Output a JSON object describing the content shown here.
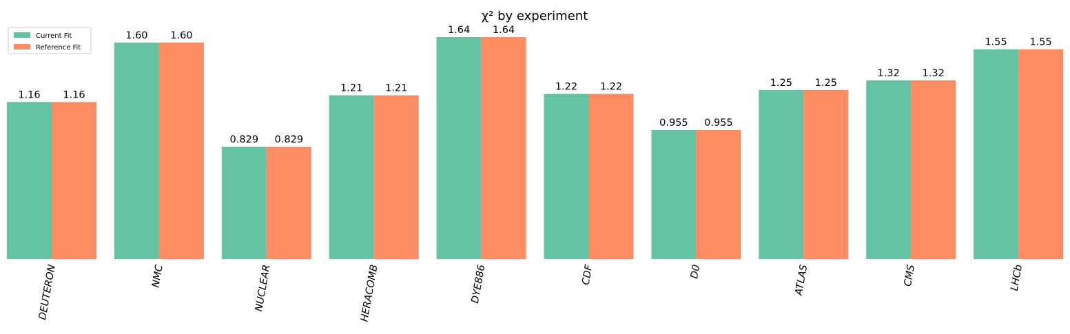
{
  "chart_data": {
    "type": "bar",
    "title": "χ² by experiment",
    "xlabel": "",
    "ylabel": "",
    "categories": [
      "DEUTERON",
      "NMC",
      "NUCLEAR",
      "HERACOMB",
      "DYE886",
      "CDF",
      "D0",
      "ATLAS",
      "CMS",
      "LHCb"
    ],
    "series": [
      {
        "name": "Current Fit",
        "color": "#66c2a5",
        "values": [
          1.16,
          1.6,
          0.829,
          1.21,
          1.64,
          1.22,
          0.955,
          1.25,
          1.32,
          1.55
        ],
        "labels": [
          "1.16",
          "1.60",
          "0.829",
          "1.21",
          "1.64",
          "1.22",
          "0.955",
          "1.25",
          "1.32",
          "1.55"
        ]
      },
      {
        "name": "Reference Fit",
        "color": "#fc8d62",
        "values": [
          1.16,
          1.6,
          0.829,
          1.21,
          1.64,
          1.22,
          0.955,
          1.25,
          1.32,
          1.55
        ],
        "labels": [
          "1.16",
          "1.60",
          "0.829",
          "1.21",
          "1.64",
          "1.22",
          "0.955",
          "1.25",
          "1.32",
          "1.55"
        ]
      }
    ],
    "ylim": [
      0,
      1.64
    ],
    "grid": false,
    "legend": "top-left"
  }
}
